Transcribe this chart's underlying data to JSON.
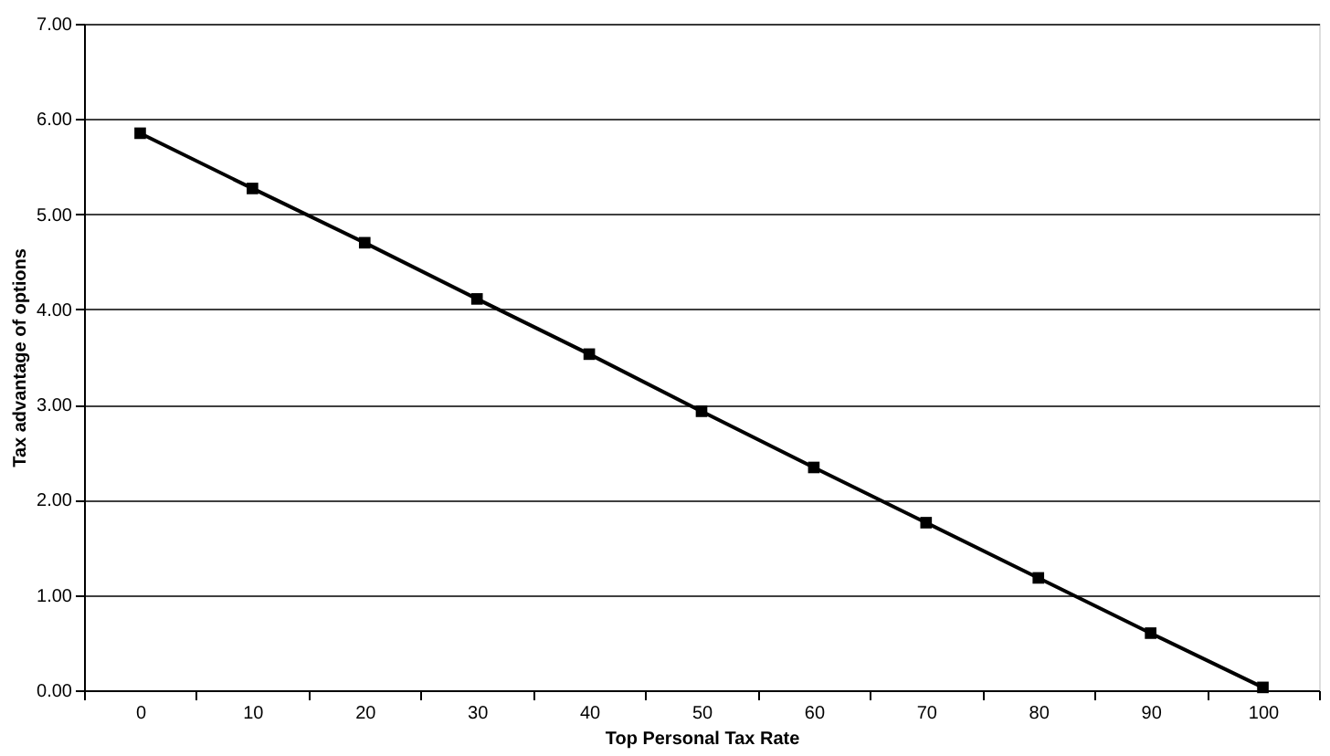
{
  "chart_data": {
    "type": "line",
    "xlabel": "Top Personal Tax Rate",
    "ylabel": "Tax advantage of options",
    "categories": [
      "0",
      "10",
      "20",
      "30",
      "40",
      "50",
      "60",
      "70",
      "80",
      "90",
      "100"
    ],
    "series": [
      {
        "color": "#000000",
        "values": [
          5.85,
          5.27,
          4.7,
          4.11,
          3.53,
          2.93,
          2.34,
          1.76,
          1.18,
          0.6,
          0.03
        ]
      }
    ],
    "ylim": [
      0,
      7
    ],
    "yticks": [
      {
        "value": 0,
        "label": "0.00"
      },
      {
        "value": 1,
        "label": "1.00"
      },
      {
        "value": 2,
        "label": "2.00"
      },
      {
        "value": 3,
        "label": "3.00"
      },
      {
        "value": 4,
        "label": "4.00"
      },
      {
        "value": 5,
        "label": "5.00"
      },
      {
        "value": 6,
        "label": "6.00"
      },
      {
        "value": 7,
        "label": "7.00"
      }
    ],
    "grid": "y",
    "marker": "square",
    "line_style": "solid"
  }
}
